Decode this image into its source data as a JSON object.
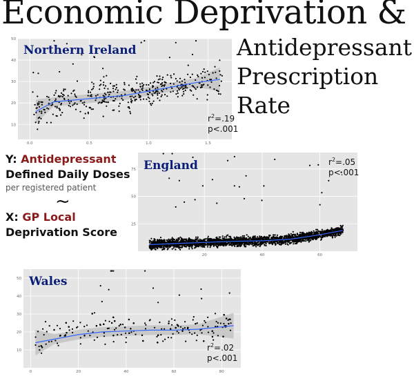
{
  "title": "Economic Deprivation &",
  "subtitle": "Antidepressant Prescription Rate",
  "legend": {
    "y_prefix": "Y:",
    "y_line1": "Antidepressant",
    "y_line2": "Defined Daily Doses",
    "y_note": "per registered patient",
    "tilde": "~",
    "x_prefix": "X:",
    "x_line1": "GP Local",
    "x_line2": "Deprivation Score"
  },
  "colors": {
    "panel_bg": "#e5e5e5",
    "grid": "#ffffff",
    "points": "#000000",
    "trend": "#3366ff",
    "band": "#bdbdbd",
    "title": "#0a1e78",
    "accent": "#8b1a1a"
  },
  "chart_data": [
    {
      "type": "scatter",
      "title": "Northern Ireland",
      "r2_label": "=.19",
      "p_label": "p<.001",
      "xlim": [
        -0.1,
        1.7
      ],
      "ylim": [
        3,
        50
      ],
      "xticks": [
        0.0,
        0.5,
        1.0,
        1.5
      ],
      "xtick_labels": [
        "0.0",
        "0.5",
        "1.0",
        "1.5"
      ],
      "yticks": [
        10,
        20,
        30,
        40,
        50
      ],
      "ytick_labels": [
        "10",
        "20",
        "30",
        "40",
        "50"
      ],
      "trend": {
        "x": [
          0.05,
          0.2,
          0.4,
          0.6,
          0.8,
          1.0,
          1.2,
          1.4,
          1.6
        ],
        "y": [
          16,
          20.5,
          21.5,
          22.5,
          23.5,
          25.5,
          27.5,
          29.5,
          31
        ]
      },
      "n_points": 420,
      "x_range": [
        0.02,
        1.62
      ],
      "y_noise": 5
    },
    {
      "type": "scatter",
      "title": "England",
      "r2_label": "=.05",
      "p_label": "p<.001",
      "xlim": [
        -3,
        73
      ],
      "ylim": [
        0,
        90
      ],
      "xticks": [
        0,
        20,
        40,
        60
      ],
      "xtick_labels": [
        "20",
        "40",
        "60"
      ],
      "xtick_values": [
        20,
        40,
        60
      ],
      "yticks": [
        25,
        50,
        75
      ],
      "ytick_labels": [
        "25",
        "50",
        "75"
      ],
      "trend": {
        "x": [
          1,
          10,
          20,
          30,
          40,
          50,
          60,
          68
        ],
        "y": [
          6,
          7,
          8,
          9,
          9.5,
          11,
          15,
          19
        ]
      },
      "n_points": 2600,
      "x_range": [
        1,
        68
      ],
      "y_noise": 3
    },
    {
      "type": "scatter",
      "title": "Wales",
      "r2_label": "=.02",
      "p_label": "p<.001",
      "xlim": [
        -3,
        88
      ],
      "ylim": [
        0,
        55
      ],
      "xticks": [
        0,
        20,
        40,
        60,
        80
      ],
      "xtick_labels": [
        "0",
        "20",
        "40",
        "60",
        "80"
      ],
      "yticks": [
        10,
        20,
        30,
        40,
        50
      ],
      "ytick_labels": [
        "10",
        "20",
        "30",
        "40",
        "50"
      ],
      "trend": {
        "x": [
          2,
          10,
          20,
          30,
          40,
          50,
          60,
          70,
          85
        ],
        "y": [
          14,
          16,
          18.5,
          20,
          20.5,
          21,
          21,
          21.5,
          23.5
        ]
      },
      "n_points": 480,
      "x_range": [
        2,
        84
      ],
      "y_noise": 6
    }
  ]
}
